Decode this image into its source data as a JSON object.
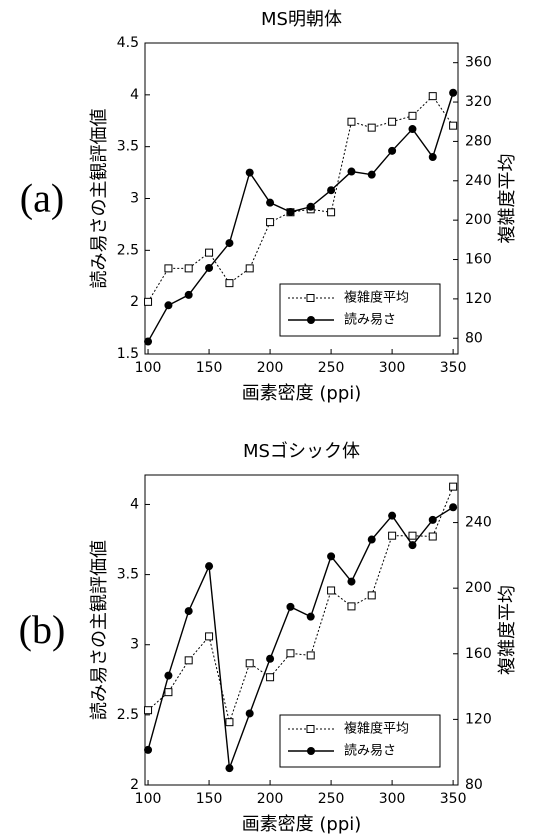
{
  "chart_data": [
    {
      "type": "line",
      "panel_label": "(a)",
      "title": "MS明朝体",
      "x_label": "画素密度 (ppi)",
      "y_label": "読み易さの主観評価値",
      "y2_label": "複雑度平均",
      "x": [
        100,
        116.7,
        133.3,
        150,
        166.7,
        183.3,
        200,
        216.7,
        233.3,
        250,
        266.7,
        283.3,
        300,
        316.7,
        333.3,
        350
      ],
      "series": [
        {
          "name": "複雑度平均",
          "color": "#000000",
          "dash": "dotted",
          "marker": "square-open",
          "axis": "y2",
          "values": [
            117,
            151,
            151,
            167,
            136,
            151,
            198,
            208,
            211,
            208,
            300,
            294,
            300,
            306,
            326,
            296
          ]
        },
        {
          "name": "読み易さ",
          "color": "#000000",
          "dash": "solid",
          "marker": "circle-filled",
          "axis": "y",
          "values": [
            1.62,
            1.97,
            2.07,
            2.33,
            2.57,
            3.25,
            2.96,
            2.87,
            2.92,
            3.08,
            3.26,
            3.23,
            3.46,
            3.67,
            3.4,
            4.02
          ]
        }
      ],
      "xlim": [
        97.5,
        354
      ],
      "xticks": [
        100,
        150,
        200,
        250,
        300,
        350
      ],
      "ylim": [
        1.5,
        4.5
      ],
      "yticks": [
        1.5,
        2,
        2.5,
        3,
        3.5,
        4,
        4.5
      ],
      "y2lim": [
        64,
        380
      ],
      "y2ticks": [
        80,
        120,
        160,
        200,
        240,
        280,
        320,
        360
      ],
      "legend": "lower right"
    },
    {
      "type": "line",
      "panel_label": "(b)",
      "title": "MSゴシック体",
      "x_label": "画素密度 (ppi)",
      "y_label": "読み易さの主観評価値",
      "y2_label": "複雑度平均",
      "x": [
        100,
        116.7,
        133.3,
        150,
        166.7,
        183.3,
        200,
        216.7,
        233.3,
        250,
        266.7,
        283.3,
        300,
        316.7,
        333.3,
        350
      ],
      "series": [
        {
          "name": "複雑度平均",
          "color": "#000000",
          "dash": "dotted",
          "marker": "square-open",
          "axis": "y2",
          "values": [
            125.6,
            136.6,
            156,
            170.6,
            118.3,
            154.2,
            145.7,
            160.3,
            159,
            198.6,
            188.9,
            195.6,
            232,
            232,
            231.5,
            261.9
          ]
        },
        {
          "name": "読み易さ",
          "color": "#000000",
          "dash": "solid",
          "marker": "circle-filled",
          "axis": "y",
          "values": [
            2.25,
            2.78,
            3.24,
            3.56,
            2.12,
            2.51,
            2.9,
            3.27,
            3.2,
            3.63,
            3.45,
            3.75,
            3.92,
            3.71,
            3.89,
            3.98
          ]
        }
      ],
      "xlim": [
        97.5,
        354
      ],
      "xticks": [
        100,
        150,
        200,
        250,
        300,
        350
      ],
      "ylim": [
        2,
        4.21
      ],
      "yticks": [
        2,
        2.5,
        3,
        3.5,
        4
      ],
      "y2lim": [
        80,
        269
      ],
      "y2ticks": [
        80,
        120,
        160,
        200,
        240
      ],
      "legend": "lower right"
    }
  ]
}
